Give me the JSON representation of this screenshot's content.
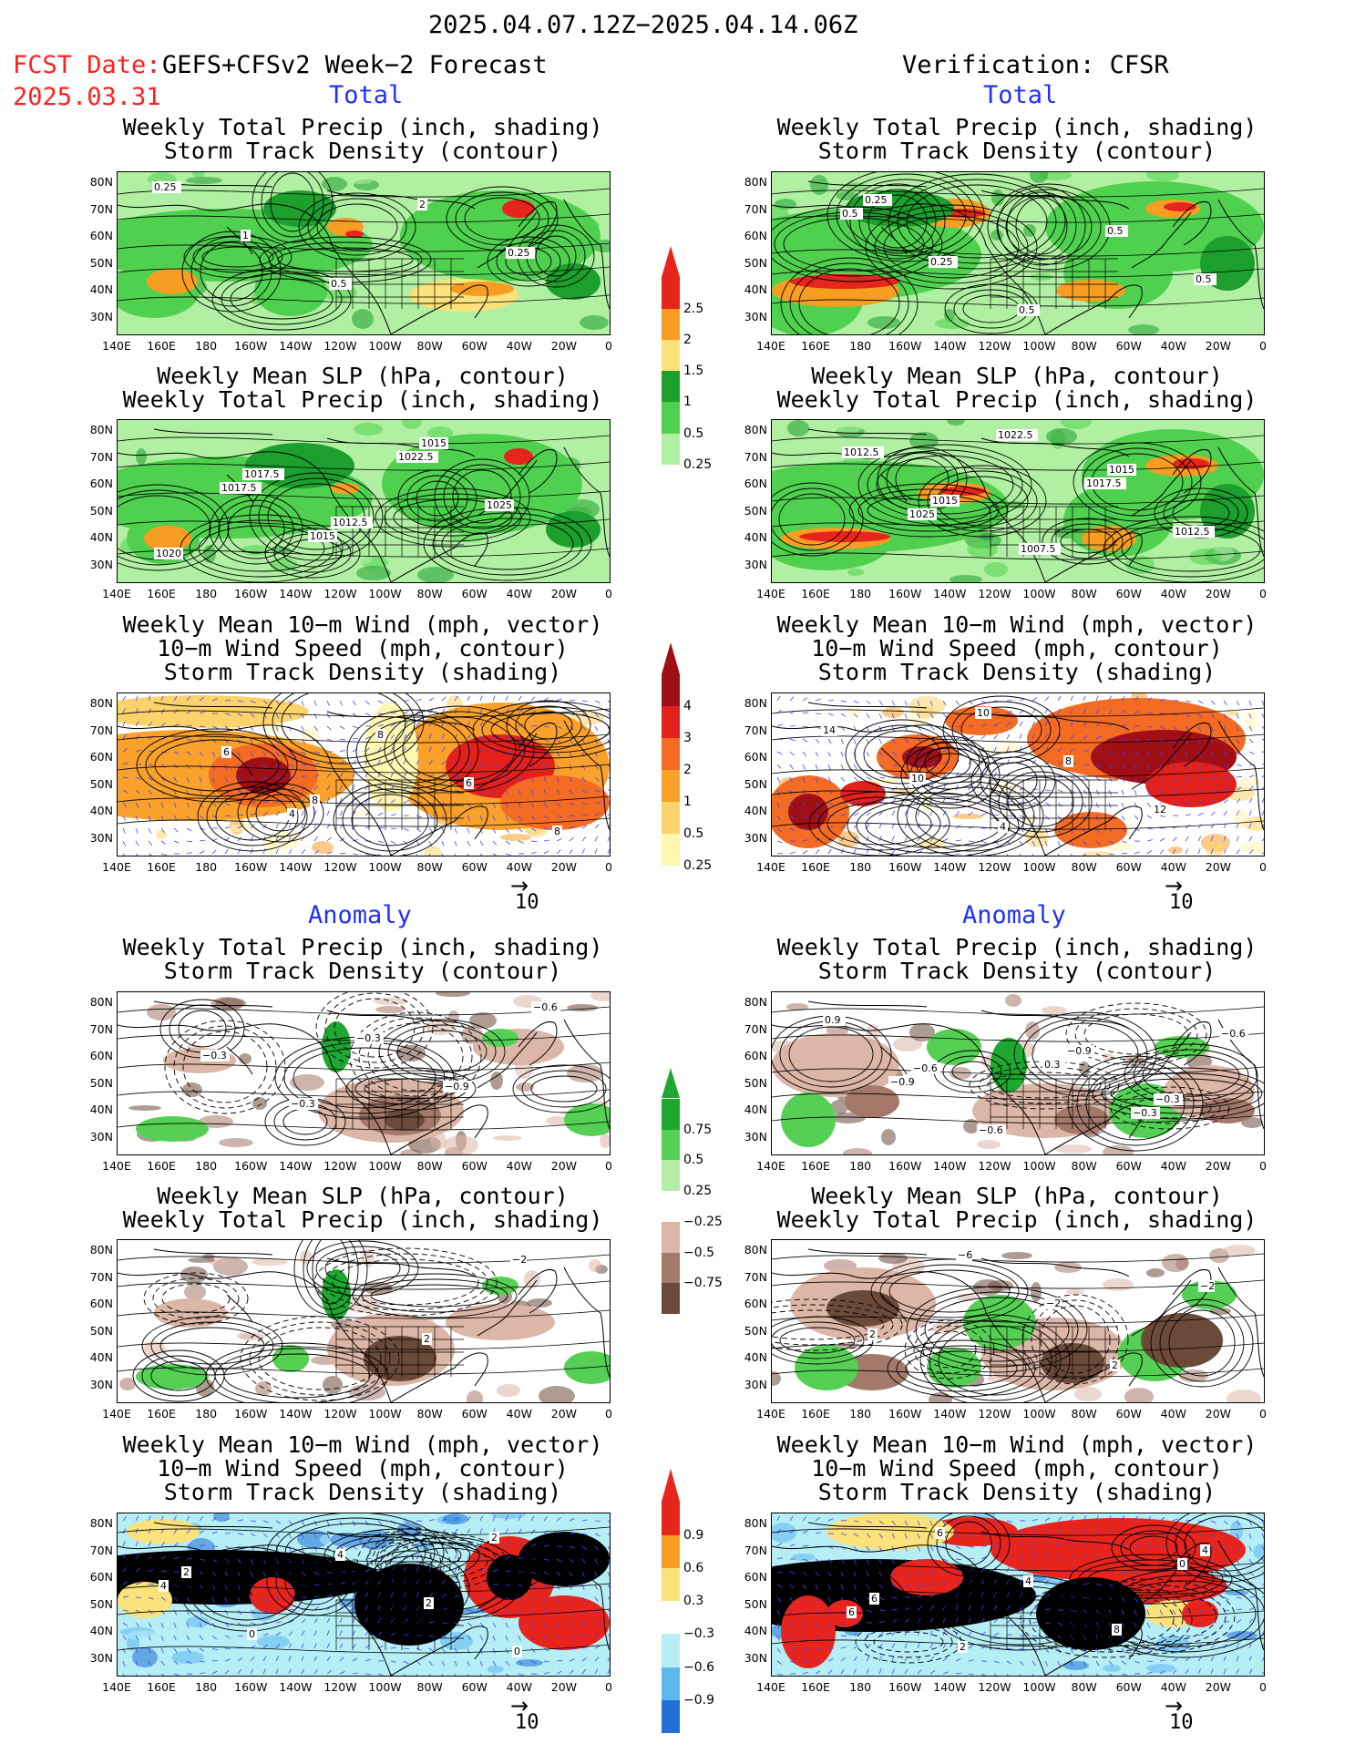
{
  "header": {
    "date_range": "2025.04.07.12Z−2025.04.14.06Z",
    "fcst_label": "FCST Date:",
    "fcst_model": "GEFS+CFSv2 Week−2 Forecast",
    "fcst_date": "2025.03.31",
    "verification": "Verification: CFSR"
  },
  "sections": {
    "total": "Total",
    "anomaly": "Anomaly"
  },
  "panel_titles": {
    "precip_storm": [
      "Weekly Total Precip (inch, shading)",
      "Storm Track Density (contour)"
    ],
    "slp_precip": [
      "Weekly Mean SLP (hPa, contour)",
      "Weekly Total Precip (inch, shading)"
    ],
    "wind_storm": [
      "Weekly Mean 10−m Wind (mph, vector)",
      "10−m Wind Speed (mph, contour)",
      "Storm Track Density (shading)"
    ]
  },
  "axes": {
    "lat_labels": [
      "80N",
      "70N",
      "60N",
      "50N",
      "40N",
      "30N"
    ],
    "lon_labels": [
      "140E",
      "160E",
      "180",
      "160W",
      "140W",
      "120W",
      "100W",
      "80W",
      "60W",
      "40W",
      "20W",
      "0"
    ]
  },
  "vector_scale": "10",
  "colorbars": [
    {
      "id": "total_precip",
      "labels": [
        "2.5",
        "2",
        "1.5",
        "1",
        "0.5",
        "0.25"
      ],
      "colors": [
        "#e8251c",
        "#f79d22",
        "#fbe27a",
        "#1d9f2d",
        "#4fd14f",
        "#b1f0a3"
      ]
    },
    {
      "id": "total_storm",
      "labels": [
        "4",
        "3",
        "2",
        "1",
        "0.5",
        "0.25"
      ],
      "colors": [
        "#a00f16",
        "#e2211c",
        "#f46b23",
        "#f9a12a",
        "#fcd36a",
        "#fff6b0"
      ]
    },
    {
      "id": "anom_precip",
      "labels": [
        "0.75",
        "0.5",
        "0.25",
        "−0.25",
        "−0.5",
        "−0.75"
      ],
      "colors": [
        "#1ea830",
        "#55d055",
        "#b5eda8",
        "#ffffff",
        "#dcb6a6",
        "#a4796a",
        "#6b4a3a"
      ]
    },
    {
      "id": "anom_storm",
      "labels": [
        "0.9",
        "0.6",
        "0.3",
        "−0.3",
        "−0.6",
        "−0.9"
      ],
      "colors": [
        "#e8251c",
        "#f79d22",
        "#fbe27a",
        "#ffffff",
        "#b6eef6",
        "#5bb7ee",
        "#1f6fd6"
      ]
    }
  ],
  "panel_annotations": {
    "L1": [
      "0.25",
      "1",
      "0.5",
      "2",
      "0.25"
    ],
    "R1": [
      "0.5",
      "0.25",
      "0.5",
      "0.5",
      "0.5",
      "0.25"
    ],
    "L2": [
      "1017.5",
      "1015",
      "1022.5",
      "1025",
      "1020",
      "1017.5",
      "1012.5",
      "1015"
    ],
    "R2": [
      "1025",
      "1022.5",
      "1017.5",
      "1012.5",
      "1012.5",
      "1015",
      "1007.5",
      "1015"
    ],
    "L3": [
      "4",
      "8",
      "6",
      "8",
      "6",
      "8"
    ],
    "R3": [
      "10",
      "8",
      "12",
      "14",
      "10",
      "4"
    ],
    "L4": [
      "−0.3",
      "−0.9",
      "−0.6",
      "−0.3",
      "−0.3"
    ],
    "R4": [
      "0.3",
      "−0.3",
      "−0.6",
      "−0.9",
      "−0.6",
      "−0.9",
      "−0.3",
      "0.9",
      "−0.6"
    ],
    "L5": [
      "2",
      "−2"
    ],
    "R5": [
      "2",
      "−2",
      "2",
      "−6",
      "−2"
    ],
    "L6": [
      "2",
      "4",
      "0",
      "4",
      "2",
      "0",
      "2"
    ],
    "R6": [
      "0",
      "6",
      "6",
      "4",
      "8",
      "4",
      "6",
      "2"
    ]
  }
}
